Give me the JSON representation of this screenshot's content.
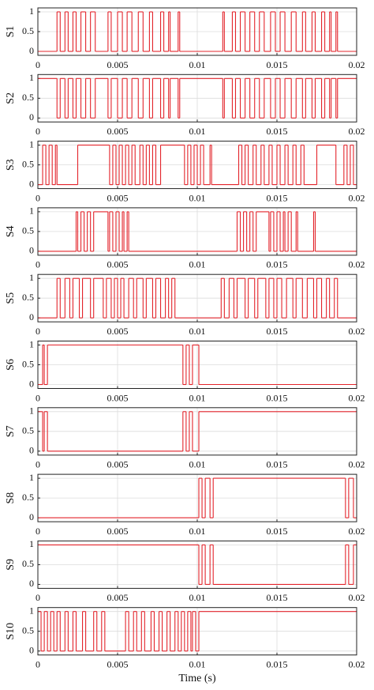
{
  "chart_data": [
    {
      "type": "line",
      "drawstyle": "steps-post",
      "ylabel": "S1",
      "color": "#e3242b",
      "grid": true,
      "xlim": [
        0,
        0.02
      ],
      "ylim": [
        -0.1,
        1.1
      ],
      "xticks": [
        0,
        0.005,
        0.01,
        0.015,
        0.02
      ],
      "yticks": [
        0,
        0.5,
        1
      ],
      "x": [
        0,
        0.0012,
        0.0014,
        0.0017,
        0.0019,
        0.0022,
        0.0024,
        0.0027,
        0.003,
        0.0033,
        0.0036,
        0.0044,
        0.0046,
        0.005,
        0.0053,
        0.0056,
        0.0059,
        0.0063,
        0.0066,
        0.007,
        0.0072,
        0.0077,
        0.0079,
        0.0082,
        0.0083,
        0.0088,
        0.0089,
        0.0116,
        0.0117,
        0.0122,
        0.0124,
        0.0127,
        0.013,
        0.0133,
        0.0136,
        0.0139,
        0.0142,
        0.0146,
        0.0149,
        0.0152,
        0.0155,
        0.0159,
        0.0162,
        0.0166,
        0.0168,
        0.0172,
        0.0174,
        0.0178,
        0.018,
        0.0183,
        0.0184,
        0.0187,
        0.0188
      ],
      "values": [
        0,
        1,
        0,
        1,
        0,
        1,
        0,
        1,
        0,
        1,
        0,
        1,
        0,
        1,
        0,
        1,
        0,
        1,
        0,
        1,
        0,
        1,
        0,
        1,
        0,
        1,
        0,
        1,
        0,
        1,
        0,
        1,
        0,
        1,
        0,
        1,
        0,
        1,
        0,
        1,
        0,
        1,
        0,
        1,
        0,
        1,
        0,
        1,
        0,
        1,
        0,
        1,
        0
      ]
    },
    {
      "type": "line",
      "drawstyle": "steps-post",
      "ylabel": "S2",
      "color": "#e3242b",
      "grid": true,
      "xlim": [
        0,
        0.02
      ],
      "ylim": [
        -0.1,
        1.1
      ],
      "xticks": [
        0,
        0.005,
        0.01,
        0.015,
        0.02
      ],
      "yticks": [
        0,
        0.5,
        1
      ],
      "x": [
        0,
        0.0012,
        0.0014,
        0.0017,
        0.0019,
        0.0022,
        0.0024,
        0.0027,
        0.003,
        0.0033,
        0.0036,
        0.0044,
        0.0046,
        0.005,
        0.0053,
        0.0056,
        0.0059,
        0.0063,
        0.0066,
        0.007,
        0.0072,
        0.0077,
        0.0079,
        0.0082,
        0.0083,
        0.0088,
        0.0089,
        0.0116,
        0.0117,
        0.0122,
        0.0124,
        0.0127,
        0.013,
        0.0133,
        0.0136,
        0.0139,
        0.0142,
        0.0146,
        0.0149,
        0.0152,
        0.0155,
        0.0159,
        0.0162,
        0.0166,
        0.0168,
        0.0172,
        0.0174,
        0.0178,
        0.018,
        0.0183,
        0.0184,
        0.0187,
        0.0188
      ],
      "values": [
        1,
        0,
        1,
        0,
        1,
        0,
        1,
        0,
        1,
        0,
        1,
        0,
        1,
        0,
        1,
        0,
        1,
        0,
        1,
        0,
        1,
        0,
        1,
        0,
        1,
        0,
        1,
        0,
        1,
        0,
        1,
        0,
        1,
        0,
        1,
        0,
        1,
        0,
        1,
        0,
        1,
        0,
        1,
        0,
        1,
        0,
        1,
        0,
        1,
        0,
        1,
        0,
        1
      ]
    },
    {
      "type": "line",
      "drawstyle": "steps-post",
      "ylabel": "S3",
      "color": "#e3242b",
      "grid": true,
      "xlim": [
        0,
        0.02
      ],
      "ylim": [
        -0.1,
        1.1
      ],
      "xticks": [
        0,
        0.005,
        0.01,
        0.015,
        0.02
      ],
      "yticks": [
        0,
        0.5,
        1
      ],
      "x": [
        0,
        0.0003,
        0.0005,
        0.0007,
        0.0009,
        0.0011,
        0.0012,
        0.0025,
        0.0045,
        0.0047,
        0.0049,
        0.0051,
        0.0053,
        0.0055,
        0.0057,
        0.0059,
        0.0061,
        0.0064,
        0.0066,
        0.0068,
        0.007,
        0.0072,
        0.0074,
        0.0077,
        0.0092,
        0.0094,
        0.0096,
        0.0098,
        0.01,
        0.0102,
        0.0104,
        0.0108,
        0.0109,
        0.0126,
        0.0128,
        0.013,
        0.0132,
        0.0135,
        0.0137,
        0.014,
        0.0142,
        0.0145,
        0.0147,
        0.015,
        0.0152,
        0.0155,
        0.0157,
        0.016,
        0.0162,
        0.0165,
        0.0167,
        0.0175,
        0.0187,
        0.0192,
        0.0194,
        0.0196,
        0.0198
      ],
      "values": [
        0,
        1,
        0,
        1,
        0,
        1,
        0,
        1,
        0,
        1,
        0,
        1,
        0,
        1,
        0,
        1,
        0,
        1,
        0,
        1,
        0,
        1,
        0,
        1,
        0,
        1,
        0,
        1,
        0,
        1,
        0,
        1,
        0,
        1,
        0,
        1,
        0,
        1,
        0,
        1,
        0,
        1,
        0,
        1,
        0,
        1,
        0,
        1,
        0,
        1,
        0,
        1,
        0,
        1,
        0,
        1,
        0
      ]
    },
    {
      "type": "line",
      "drawstyle": "steps-post",
      "ylabel": "S4",
      "color": "#e3242b",
      "grid": true,
      "xlim": [
        0,
        0.02
      ],
      "ylim": [
        -0.1,
        1.1
      ],
      "xticks": [
        0,
        0.005,
        0.01,
        0.015,
        0.02
      ],
      "yticks": [
        0,
        0.5,
        1
      ],
      "x": [
        0,
        0.0024,
        0.0025,
        0.0027,
        0.0029,
        0.0031,
        0.0033,
        0.0035,
        0.0044,
        0.0045,
        0.0047,
        0.0049,
        0.0051,
        0.0053,
        0.0054,
        0.0056,
        0.0057,
        0.0125,
        0.0127,
        0.0129,
        0.0131,
        0.0133,
        0.0135,
        0.0137,
        0.0145,
        0.0146,
        0.0148,
        0.015,
        0.0152,
        0.0154,
        0.0155,
        0.0157,
        0.0159,
        0.0162,
        0.0163,
        0.0173,
        0.0174
      ],
      "values": [
        0,
        1,
        0,
        1,
        0,
        1,
        0,
        1,
        0,
        1,
        0,
        1,
        0,
        1,
        0,
        1,
        0,
        1,
        0,
        1,
        0,
        1,
        0,
        1,
        0,
        1,
        0,
        1,
        0,
        1,
        0,
        1,
        0,
        1,
        0,
        1,
        0
      ]
    },
    {
      "type": "line",
      "drawstyle": "steps-post",
      "ylabel": "S5",
      "color": "#e3242b",
      "grid": true,
      "xlim": [
        0,
        0.02
      ],
      "ylim": [
        -0.1,
        1.1
      ],
      "xticks": [
        0,
        0.005,
        0.01,
        0.015,
        0.02
      ],
      "yticks": [
        0,
        0.5,
        1
      ],
      "x": [
        0,
        0.0012,
        0.0014,
        0.0017,
        0.002,
        0.0022,
        0.0026,
        0.0028,
        0.0033,
        0.0035,
        0.0041,
        0.0043,
        0.0046,
        0.0048,
        0.005,
        0.0052,
        0.0054,
        0.0057,
        0.006,
        0.0062,
        0.0066,
        0.0068,
        0.0072,
        0.0074,
        0.0077,
        0.008,
        0.0082,
        0.0084,
        0.0086,
        0.0115,
        0.0117,
        0.012,
        0.0123,
        0.0125,
        0.013,
        0.0132,
        0.0136,
        0.0138,
        0.0143,
        0.0145,
        0.0148,
        0.015,
        0.0153,
        0.0156,
        0.016,
        0.0162,
        0.0166,
        0.0169,
        0.0173,
        0.0175,
        0.0178,
        0.0181,
        0.0183,
        0.0186,
        0.0188
      ],
      "values": [
        0,
        1,
        0,
        1,
        0,
        1,
        0,
        1,
        0,
        1,
        0,
        1,
        0,
        1,
        0,
        1,
        0,
        1,
        0,
        1,
        0,
        1,
        0,
        1,
        0,
        1,
        0,
        1,
        0,
        1,
        0,
        1,
        0,
        1,
        0,
        1,
        0,
        1,
        0,
        1,
        0,
        1,
        0,
        1,
        0,
        1,
        0,
        1,
        0,
        1,
        0,
        1,
        0,
        1,
        0
      ]
    },
    {
      "type": "line",
      "drawstyle": "steps-post",
      "ylabel": "S6",
      "color": "#e3242b",
      "grid": true,
      "xlim": [
        0,
        0.02
      ],
      "ylim": [
        -0.1,
        1.1
      ],
      "xticks": [
        0,
        0.005,
        0.01,
        0.015,
        0.02
      ],
      "yticks": [
        0,
        0.5,
        1
      ],
      "x": [
        0,
        0.0003,
        0.0004,
        0.0006,
        0.0091,
        0.0093,
        0.0095,
        0.0097,
        0.0101
      ],
      "values": [
        0,
        1,
        0,
        1,
        0,
        1,
        0,
        1,
        0
      ]
    },
    {
      "type": "line",
      "drawstyle": "steps-post",
      "ylabel": "S7",
      "color": "#e3242b",
      "grid": true,
      "xlim": [
        0,
        0.02
      ],
      "ylim": [
        -0.1,
        1.1
      ],
      "xticks": [
        0,
        0.005,
        0.01,
        0.015,
        0.02
      ],
      "yticks": [
        0,
        0.5,
        1
      ],
      "x": [
        0,
        0.0003,
        0.0004,
        0.0006,
        0.0091,
        0.0093,
        0.0095,
        0.0097,
        0.0101
      ],
      "values": [
        1,
        0,
        1,
        0,
        1,
        0,
        1,
        0,
        1
      ]
    },
    {
      "type": "line",
      "drawstyle": "steps-post",
      "ylabel": "S8",
      "color": "#e3242b",
      "grid": true,
      "xlim": [
        0,
        0.02
      ],
      "ylim": [
        -0.1,
        1.1
      ],
      "xticks": [
        0,
        0.005,
        0.01,
        0.015,
        0.02
      ],
      "yticks": [
        0,
        0.5,
        1
      ],
      "x": [
        0,
        0.0101,
        0.0103,
        0.0105,
        0.0108,
        0.011,
        0.0193,
        0.0195,
        0.0198
      ],
      "values": [
        0,
        1,
        0,
        1,
        0,
        1,
        0,
        1,
        0
      ]
    },
    {
      "type": "line",
      "drawstyle": "steps-post",
      "ylabel": "S9",
      "color": "#e3242b",
      "grid": true,
      "xlim": [
        0,
        0.02
      ],
      "ylim": [
        -0.1,
        1.1
      ],
      "xticks": [
        0,
        0.005,
        0.01,
        0.015,
        0.02
      ],
      "yticks": [
        0,
        0.5,
        1
      ],
      "x": [
        0,
        0.0101,
        0.0103,
        0.0105,
        0.0108,
        0.011,
        0.0193,
        0.0195,
        0.0198
      ],
      "values": [
        1,
        0,
        1,
        0,
        1,
        0,
        1,
        0,
        1
      ]
    },
    {
      "type": "line",
      "drawstyle": "steps-post",
      "ylabel": "S10",
      "xlabel": "Time (s)",
      "color": "#e3242b",
      "grid": true,
      "xlim": [
        0,
        0.02
      ],
      "ylim": [
        -0.1,
        1.1
      ],
      "xticks": [
        0,
        0.005,
        0.01,
        0.015,
        0.02
      ],
      "yticks": [
        0,
        0.5,
        1
      ],
      "x": [
        0,
        0.0002,
        0.0004,
        0.0006,
        0.0008,
        0.001,
        0.0012,
        0.0014,
        0.0017,
        0.0019,
        0.0022,
        0.0024,
        0.0028,
        0.003,
        0.0035,
        0.0037,
        0.004,
        0.0042,
        0.0055,
        0.0057,
        0.006,
        0.0062,
        0.0065,
        0.0067,
        0.0071,
        0.0073,
        0.0076,
        0.0078,
        0.0081,
        0.0083,
        0.0086,
        0.0088,
        0.009,
        0.0092,
        0.0094,
        0.0096,
        0.0097,
        0.0099,
        0.0101
      ],
      "values": [
        1,
        0,
        1,
        0,
        1,
        0,
        1,
        0,
        1,
        0,
        1,
        0,
        1,
        0,
        1,
        0,
        1,
        0,
        1,
        0,
        1,
        0,
        1,
        0,
        1,
        0,
        1,
        0,
        1,
        0,
        1,
        0,
        1,
        0,
        1,
        0,
        1,
        0,
        1
      ]
    }
  ]
}
